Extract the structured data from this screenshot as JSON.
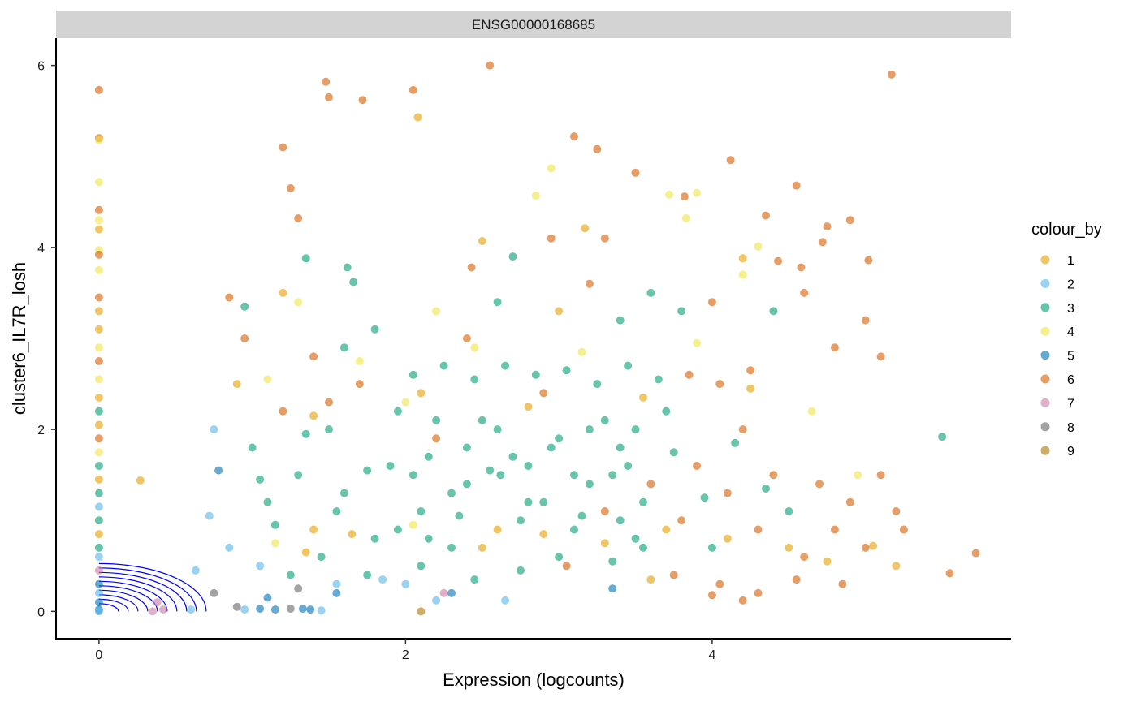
{
  "chart_data": {
    "type": "scatter",
    "facet_label": "ENSG00000168685",
    "xlabel": "Expression (logcounts)",
    "ylabel": "cluster6_IL7R_losh",
    "xlim": [
      -0.28,
      5.95
    ],
    "ylim": [
      -0.3,
      6.3
    ],
    "x_ticks": [
      0,
      2,
      4
    ],
    "y_ticks": [
      0,
      2,
      4,
      6
    ],
    "legend_title": "colour_by",
    "legend_position": "right",
    "grid": false,
    "series": [
      {
        "name": "1",
        "color": "#E69F00"
      },
      {
        "name": "2",
        "color": "#56B4E9"
      },
      {
        "name": "3",
        "color": "#009E73"
      },
      {
        "name": "4",
        "color": "#F0E442"
      },
      {
        "name": "5",
        "color": "#0072B2"
      },
      {
        "name": "6",
        "color": "#D55E00"
      },
      {
        "name": "7",
        "color": "#CC79A7"
      },
      {
        "name": "8",
        "color": "#666666"
      },
      {
        "name": "9",
        "color": "#AD7700"
      }
    ],
    "points": [
      [
        0,
        5.73,
        "6"
      ],
      [
        0,
        5.2,
        "6"
      ],
      [
        0,
        5.18,
        "4"
      ],
      [
        0,
        4.72,
        "4"
      ],
      [
        0,
        4.41,
        "6"
      ],
      [
        0,
        4.3,
        "4"
      ],
      [
        0,
        4.2,
        "1"
      ],
      [
        0,
        3.97,
        "4"
      ],
      [
        0,
        3.92,
        "6"
      ],
      [
        0,
        3.75,
        "4"
      ],
      [
        0,
        3.45,
        "6"
      ],
      [
        0,
        3.3,
        "1"
      ],
      [
        0,
        3.1,
        "1"
      ],
      [
        0,
        2.9,
        "4"
      ],
      [
        0,
        2.75,
        "6"
      ],
      [
        0,
        2.55,
        "4"
      ],
      [
        0,
        2.35,
        "1"
      ],
      [
        0,
        2.2,
        "3"
      ],
      [
        0,
        2.05,
        "1"
      ],
      [
        0,
        1.9,
        "6"
      ],
      [
        0,
        1.75,
        "4"
      ],
      [
        0,
        1.6,
        "3"
      ],
      [
        0,
        1.45,
        "1"
      ],
      [
        0,
        1.3,
        "3"
      ],
      [
        0,
        1.15,
        "2"
      ],
      [
        0,
        1.0,
        "3"
      ],
      [
        0,
        0.85,
        "1"
      ],
      [
        0,
        0.7,
        "3"
      ],
      [
        0,
        0.6,
        "2"
      ],
      [
        0,
        0.45,
        "7"
      ],
      [
        0,
        0.3,
        "5"
      ],
      [
        0,
        0.2,
        "2"
      ],
      [
        0,
        0.1,
        "5"
      ],
      [
        0,
        0.02,
        "5"
      ],
      [
        0,
        0.0,
        "2"
      ],
      [
        0.27,
        1.44,
        "1"
      ],
      [
        0.35,
        0.0,
        "7"
      ],
      [
        0.38,
        0.1,
        "7"
      ],
      [
        0.42,
        0.02,
        "7"
      ],
      [
        0.6,
        0.02,
        "2"
      ],
      [
        0.63,
        0.45,
        "2"
      ],
      [
        0.75,
        2.0,
        "2"
      ],
      [
        0.72,
        1.05,
        "2"
      ],
      [
        0.78,
        1.55,
        "5"
      ],
      [
        0.85,
        3.45,
        "6"
      ],
      [
        0.9,
        0.05,
        "8"
      ],
      [
        0.95,
        0.02,
        "2"
      ],
      [
        1.05,
        0.03,
        "5"
      ],
      [
        1.15,
        0.02,
        "5"
      ],
      [
        1.25,
        0.03,
        "8"
      ],
      [
        1.33,
        0.03,
        "5"
      ],
      [
        1.38,
        0.02,
        "5"
      ],
      [
        1.45,
        0.01,
        "2"
      ],
      [
        0.75,
        0.2,
        "8"
      ],
      [
        1.1,
        0.15,
        "5"
      ],
      [
        1.3,
        0.25,
        "8"
      ],
      [
        1.55,
        0.2,
        "5"
      ],
      [
        2.1,
        0.0,
        "9"
      ],
      [
        2.25,
        0.2,
        "7"
      ],
      [
        1.2,
        5.1,
        "6"
      ],
      [
        1.25,
        4.65,
        "6"
      ],
      [
        1.3,
        4.32,
        "6"
      ],
      [
        1.48,
        5.82,
        "6"
      ],
      [
        1.5,
        5.65,
        "6"
      ],
      [
        1.72,
        5.62,
        "6"
      ],
      [
        2.05,
        5.73,
        "6"
      ],
      [
        2.08,
        5.43,
        "1"
      ],
      [
        2.55,
        6.0,
        "6"
      ],
      [
        2.85,
        4.57,
        "4"
      ],
      [
        2.95,
        4.87,
        "4"
      ],
      [
        3.1,
        5.22,
        "6"
      ],
      [
        3.25,
        5.08,
        "6"
      ],
      [
        3.5,
        4.82,
        "6"
      ],
      [
        3.82,
        4.56,
        "6"
      ],
      [
        3.9,
        4.6,
        "4"
      ],
      [
        4.12,
        4.96,
        "6"
      ],
      [
        4.55,
        4.68,
        "6"
      ],
      [
        5.17,
        5.9,
        "6"
      ],
      [
        3.72,
        4.58,
        "4"
      ],
      [
        3.83,
        4.32,
        "4"
      ],
      [
        4.35,
        4.35,
        "6"
      ],
      [
        1.35,
        3.88,
        "3"
      ],
      [
        1.62,
        3.78,
        "3"
      ],
      [
        1.66,
        3.62,
        "3"
      ],
      [
        2.43,
        3.78,
        "6"
      ],
      [
        2.5,
        4.07,
        "1"
      ],
      [
        2.95,
        4.1,
        "6"
      ],
      [
        3.17,
        4.21,
        "1"
      ],
      [
        3.3,
        4.1,
        "6"
      ],
      [
        4.9,
        4.3,
        "6"
      ],
      [
        4.72,
        4.06,
        "6"
      ],
      [
        4.75,
        4.23,
        "6"
      ],
      [
        5.02,
        3.86,
        "6"
      ],
      [
        4.43,
        3.85,
        "6"
      ],
      [
        4.58,
        3.78,
        "6"
      ],
      [
        4.2,
        3.88,
        "1"
      ],
      [
        4.3,
        4.01,
        "4"
      ],
      [
        1.4,
        2.8,
        "6"
      ],
      [
        1.5,
        2.3,
        "6"
      ],
      [
        1.6,
        2.9,
        "3"
      ],
      [
        1.8,
        3.1,
        "3"
      ],
      [
        2.2,
        3.3,
        "4"
      ],
      [
        2.4,
        3.0,
        "6"
      ],
      [
        2.6,
        3.4,
        "3"
      ],
      [
        2.7,
        3.9,
        "3"
      ],
      [
        3.0,
        3.3,
        "1"
      ],
      [
        3.2,
        3.6,
        "6"
      ],
      [
        3.4,
        3.2,
        "3"
      ],
      [
        3.6,
        3.5,
        "3"
      ],
      [
        3.8,
        3.3,
        "3"
      ],
      [
        4.0,
        3.4,
        "6"
      ],
      [
        4.2,
        3.7,
        "4"
      ],
      [
        4.4,
        3.3,
        "3"
      ],
      [
        4.6,
        3.5,
        "6"
      ],
      [
        4.8,
        2.9,
        "6"
      ],
      [
        5.0,
        3.2,
        "6"
      ],
      [
        5.1,
        2.8,
        "6"
      ],
      [
        1.3,
        3.4,
        "4"
      ],
      [
        1.2,
        3.5,
        "1"
      ],
      [
        0.95,
        3.35,
        "3"
      ],
      [
        0.95,
        3.0,
        "6"
      ],
      [
        0.9,
        2.5,
        "1"
      ],
      [
        1.0,
        1.8,
        "3"
      ],
      [
        1.1,
        1.2,
        "3"
      ],
      [
        1.2,
        2.2,
        "6"
      ],
      [
        1.3,
        1.5,
        "3"
      ],
      [
        1.4,
        0.9,
        "1"
      ],
      [
        1.5,
        2.0,
        "3"
      ],
      [
        1.6,
        1.3,
        "3"
      ],
      [
        1.7,
        2.5,
        "6"
      ],
      [
        1.8,
        0.8,
        "3"
      ],
      [
        1.9,
        1.6,
        "3"
      ],
      [
        2.0,
        2.3,
        "4"
      ],
      [
        2.1,
        1.1,
        "3"
      ],
      [
        2.2,
        1.9,
        "6"
      ],
      [
        2.3,
        0.7,
        "3"
      ],
      [
        2.4,
        1.4,
        "3"
      ],
      [
        2.5,
        2.1,
        "3"
      ],
      [
        2.6,
        0.9,
        "1"
      ],
      [
        2.7,
        1.7,
        "3"
      ],
      [
        2.8,
        1.2,
        "3"
      ],
      [
        2.9,
        2.4,
        "6"
      ],
      [
        3.0,
        0.6,
        "3"
      ],
      [
        3.1,
        1.5,
        "3"
      ],
      [
        3.2,
        2.0,
        "3"
      ],
      [
        3.3,
        1.1,
        "6"
      ],
      [
        3.4,
        1.8,
        "3"
      ],
      [
        3.5,
        0.8,
        "3"
      ],
      [
        3.6,
        1.4,
        "6"
      ],
      [
        3.7,
        2.2,
        "3"
      ],
      [
        3.8,
        1.0,
        "6"
      ],
      [
        3.9,
        1.6,
        "6"
      ],
      [
        4.0,
        0.7,
        "3"
      ],
      [
        4.1,
        1.3,
        "6"
      ],
      [
        4.2,
        2.0,
        "6"
      ],
      [
        4.3,
        0.9,
        "6"
      ],
      [
        4.4,
        1.5,
        "6"
      ],
      [
        4.5,
        1.1,
        "3"
      ],
      [
        4.6,
        0.6,
        "6"
      ],
      [
        4.7,
        1.4,
        "6"
      ],
      [
        4.8,
        0.9,
        "6"
      ],
      [
        4.9,
        1.2,
        "6"
      ],
      [
        5.0,
        0.7,
        "6"
      ],
      [
        5.1,
        1.5,
        "6"
      ],
      [
        5.2,
        1.1,
        "6"
      ],
      [
        5.25,
        0.9,
        "6"
      ],
      [
        5.5,
        1.92,
        "3"
      ],
      [
        5.55,
        0.42,
        "6"
      ],
      [
        5.72,
        0.64,
        "6"
      ],
      [
        5.2,
        0.5,
        "1"
      ],
      [
        5.05,
        0.72,
        "1"
      ],
      [
        4.95,
        1.5,
        "4"
      ],
      [
        2.0,
        0.3,
        "2"
      ],
      [
        2.2,
        0.12,
        "2"
      ],
      [
        2.3,
        0.2,
        "5"
      ],
      [
        2.65,
        0.12,
        "2"
      ],
      [
        3.35,
        0.25,
        "5"
      ],
      [
        3.6,
        0.35,
        "1"
      ],
      [
        1.25,
        0.4,
        "3"
      ],
      [
        1.45,
        0.6,
        "3"
      ],
      [
        1.75,
        0.4,
        "3"
      ],
      [
        2.1,
        0.5,
        "3"
      ],
      [
        2.45,
        0.35,
        "3"
      ],
      [
        2.75,
        0.45,
        "3"
      ],
      [
        3.05,
        0.5,
        "6"
      ],
      [
        3.35,
        0.55,
        "3"
      ],
      [
        3.75,
        0.4,
        "6"
      ],
      [
        4.05,
        0.3,
        "6"
      ],
      [
        4.3,
        0.2,
        "6"
      ],
      [
        4.55,
        0.35,
        "6"
      ],
      [
        4.85,
        0.3,
        "6"
      ],
      [
        4.2,
        0.12,
        "6"
      ],
      [
        4.0,
        0.18,
        "6"
      ],
      [
        1.05,
        1.45,
        "3"
      ],
      [
        1.15,
        0.95,
        "3"
      ],
      [
        1.35,
        1.95,
        "3"
      ],
      [
        1.55,
        1.1,
        "3"
      ],
      [
        1.75,
        1.55,
        "3"
      ],
      [
        1.95,
        0.9,
        "3"
      ],
      [
        2.15,
        1.7,
        "3"
      ],
      [
        2.35,
        1.05,
        "3"
      ],
      [
        2.55,
        1.55,
        "3"
      ],
      [
        2.75,
        1.0,
        "3"
      ],
      [
        2.95,
        1.8,
        "3"
      ],
      [
        3.15,
        1.05,
        "3"
      ],
      [
        3.35,
        1.5,
        "3"
      ],
      [
        3.55,
        1.2,
        "3"
      ],
      [
        3.75,
        1.75,
        "3"
      ],
      [
        3.95,
        1.25,
        "3"
      ],
      [
        4.15,
        1.85,
        "3"
      ],
      [
        4.35,
        1.35,
        "3"
      ],
      [
        2.05,
        2.6,
        "3"
      ],
      [
        2.25,
        2.7,
        "3"
      ],
      [
        2.45,
        2.55,
        "3"
      ],
      [
        2.65,
        2.7,
        "3"
      ],
      [
        2.85,
        2.6,
        "3"
      ],
      [
        3.05,
        2.65,
        "3"
      ],
      [
        3.25,
        2.5,
        "3"
      ],
      [
        3.45,
        2.7,
        "3"
      ],
      [
        3.65,
        2.55,
        "3"
      ],
      [
        3.85,
        2.6,
        "6"
      ],
      [
        4.05,
        2.5,
        "6"
      ],
      [
        4.25,
        2.65,
        "6"
      ],
      [
        1.15,
        0.75,
        "4"
      ],
      [
        1.35,
        0.65,
        "1"
      ],
      [
        1.65,
        0.85,
        "1"
      ],
      [
        2.05,
        0.95,
        "4"
      ],
      [
        2.5,
        0.7,
        "1"
      ],
      [
        2.9,
        0.85,
        "1"
      ],
      [
        3.3,
        0.75,
        "1"
      ],
      [
        3.7,
        0.9,
        "1"
      ],
      [
        4.1,
        0.8,
        "1"
      ],
      [
        4.5,
        0.7,
        "1"
      ],
      [
        4.75,
        0.55,
        "1"
      ],
      [
        1.1,
        2.55,
        "4"
      ],
      [
        1.4,
        2.15,
        "1"
      ],
      [
        1.7,
        2.75,
        "4"
      ],
      [
        2.1,
        2.4,
        "1"
      ],
      [
        2.45,
        2.9,
        "4"
      ],
      [
        2.8,
        2.25,
        "1"
      ],
      [
        3.15,
        2.85,
        "4"
      ],
      [
        3.55,
        2.35,
        "1"
      ],
      [
        3.9,
        2.95,
        "4"
      ],
      [
        4.25,
        2.45,
        "1"
      ],
      [
        4.65,
        2.2,
        "4"
      ],
      [
        1.55,
        0.3,
        "2"
      ],
      [
        1.85,
        0.35,
        "2"
      ],
      [
        0.85,
        0.7,
        "2"
      ],
      [
        1.05,
        0.5,
        "2"
      ],
      [
        2.6,
        2.0,
        "3"
      ],
      [
        2.62,
        1.5,
        "3"
      ],
      [
        2.8,
        1.6,
        "3"
      ],
      [
        2.9,
        1.2,
        "3"
      ],
      [
        3.0,
        1.9,
        "3"
      ],
      [
        3.1,
        0.9,
        "3"
      ],
      [
        3.2,
        1.4,
        "3"
      ],
      [
        3.3,
        2.1,
        "3"
      ],
      [
        3.4,
        1.0,
        "3"
      ],
      [
        3.45,
        1.6,
        "3"
      ],
      [
        3.5,
        2.0,
        "3"
      ],
      [
        3.55,
        0.7,
        "3"
      ],
      [
        2.4,
        1.8,
        "3"
      ],
      [
        2.3,
        1.3,
        "3"
      ],
      [
        2.2,
        2.1,
        "3"
      ],
      [
        2.15,
        0.8,
        "3"
      ],
      [
        2.05,
        1.5,
        "3"
      ],
      [
        1.95,
        2.2,
        "3"
      ]
    ]
  }
}
